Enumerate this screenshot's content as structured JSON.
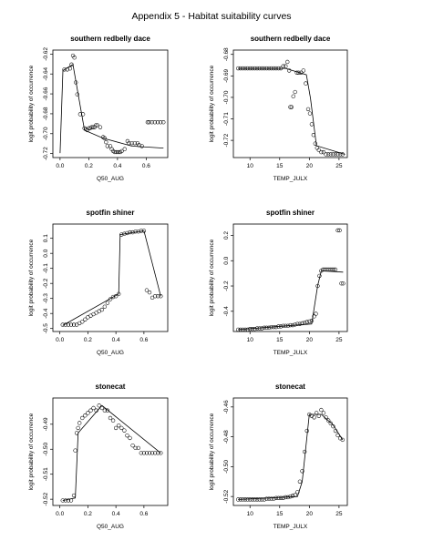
{
  "page": {
    "title": "Appendix 5 - Habitat suitability curves"
  },
  "chart_data": [
    {
      "type": "scatter",
      "title": "southern redbelly dace",
      "xlabel": "Q50_AUG",
      "ylabel": "logit probability of occurrence",
      "xlim": [
        -0.05,
        0.75
      ],
      "ylim": [
        -0.724,
        -0.616
      ],
      "xticks": [
        0.0,
        0.2,
        0.4,
        0.6
      ],
      "xtick_labels": [
        "0.0",
        "0.2",
        "0.4",
        "0.6"
      ],
      "yticks": [
        -0.72,
        -0.7,
        -0.68,
        -0.66,
        -0.64,
        -0.62
      ],
      "ytick_labels": [
        "-0.72",
        "-0.70",
        "-0.68",
        "-0.66",
        "-0.64",
        "-0.62"
      ],
      "grid": false,
      "points": {
        "x": [
          0.03,
          0.05,
          0.07,
          0.08,
          0.09,
          0.1,
          0.11,
          0.12,
          0.14,
          0.16,
          0.17,
          0.18,
          0.19,
          0.2,
          0.21,
          0.22,
          0.23,
          0.24,
          0.25,
          0.26,
          0.28,
          0.3,
          0.31,
          0.32,
          0.33,
          0.35,
          0.36,
          0.37,
          0.38,
          0.39,
          0.4,
          0.41,
          0.42,
          0.43,
          0.45,
          0.47,
          0.48,
          0.5,
          0.52,
          0.54,
          0.55,
          0.57,
          0.61,
          0.62,
          0.64,
          0.66,
          0.68,
          0.7,
          0.72
        ],
        "y": [
          -0.6355,
          -0.6355,
          -0.6345,
          -0.6305,
          -0.6215,
          -0.6235,
          -0.6485,
          -0.6605,
          -0.6805,
          -0.6805,
          -0.6945,
          -0.6955,
          -0.6965,
          -0.6945,
          -0.6945,
          -0.6935,
          -0.6935,
          -0.6935,
          -0.6915,
          -0.6915,
          -0.6935,
          -0.7035,
          -0.7045,
          -0.7085,
          -0.7125,
          -0.7125,
          -0.7155,
          -0.7175,
          -0.7185,
          -0.7185,
          -0.7185,
          -0.7185,
          -0.7185,
          -0.7175,
          -0.7155,
          -0.7075,
          -0.7095,
          -0.7095,
          -0.7095,
          -0.7095,
          -0.7115,
          -0.7125,
          -0.6885,
          -0.6885,
          -0.6885,
          -0.6885,
          -0.6885,
          -0.6885,
          -0.6885
        ]
      },
      "fitted_line": {
        "x": [
          0.0,
          0.02,
          0.09,
          0.17,
          0.3,
          0.5,
          0.72
        ],
        "y": [
          -0.7195,
          -0.6365,
          -0.6305,
          -0.6965,
          -0.7045,
          -0.7125,
          -0.7145
        ]
      }
    },
    {
      "type": "scatter",
      "title": "southern redbelly dace",
      "xlabel": "TEMP_JULX",
      "ylabel": "logit probability of occurrence",
      "xlim": [
        7.2,
        26.4
      ],
      "ylim": [
        -0.728,
        -0.678
      ],
      "xticks": [
        10,
        15,
        20,
        25
      ],
      "xtick_labels": [
        "10",
        "15",
        "20",
        "25"
      ],
      "yticks": [
        -0.72,
        -0.71,
        -0.7,
        -0.69,
        -0.68
      ],
      "ytick_labels": [
        "-0.72",
        "-0.71",
        "-0.70",
        "-0.69",
        "-0.68"
      ],
      "grid": false,
      "points": {
        "x": [
          8.0,
          8.4,
          8.8,
          9.2,
          9.6,
          10.0,
          10.4,
          10.8,
          11.2,
          11.6,
          12.0,
          12.4,
          12.8,
          13.2,
          13.6,
          14.0,
          14.4,
          14.8,
          15.2,
          15.6,
          16.0,
          16.3,
          16.6,
          16.8,
          17.0,
          17.3,
          17.6,
          17.9,
          18.2,
          18.6,
          19.0,
          19.4,
          19.8,
          20.1,
          20.4,
          20.7,
          21.0,
          21.3,
          21.6,
          22.0,
          22.4,
          22.8,
          23.2,
          23.6,
          24.0,
          24.4,
          24.8,
          25.2,
          25.6
        ],
        "y": [
          -0.6865,
          -0.6865,
          -0.6865,
          -0.6865,
          -0.6865,
          -0.6865,
          -0.6865,
          -0.6865,
          -0.6865,
          -0.6865,
          -0.6865,
          -0.6865,
          -0.6865,
          -0.6865,
          -0.6865,
          -0.6865,
          -0.6865,
          -0.6865,
          -0.6865,
          -0.6855,
          -0.6855,
          -0.6835,
          -0.6875,
          -0.7045,
          -0.7045,
          -0.6995,
          -0.6975,
          -0.6885,
          -0.6885,
          -0.6885,
          -0.6875,
          -0.6935,
          -0.7055,
          -0.7075,
          -0.7125,
          -0.7175,
          -0.7215,
          -0.7235,
          -0.7245,
          -0.7255,
          -0.7255,
          -0.7265,
          -0.7265,
          -0.7265,
          -0.7265,
          -0.7265,
          -0.7265,
          -0.7265,
          -0.7265
        ]
      },
      "fitted_line": {
        "x": [
          8.0,
          16.0,
          19.5,
          20.2,
          21.2,
          26.0
        ],
        "y": [
          -0.6865,
          -0.6865,
          -0.6895,
          -0.7005,
          -0.7225,
          -0.7265
        ]
      }
    },
    {
      "type": "scatter",
      "title": "spotfin shiner",
      "xlabel": "Q50_AUG",
      "ylabel": "logit probability of occurrence",
      "xlim": [
        -0.05,
        0.77
      ],
      "ylim": [
        -0.52,
        0.195
      ],
      "xticks": [
        0.0,
        0.2,
        0.4,
        0.6
      ],
      "xtick_labels": [
        "0.0",
        "0.2",
        "0.4",
        "0.6"
      ],
      "yticks": [
        -0.5,
        -0.4,
        -0.3,
        -0.2,
        -0.1,
        0.0,
        0.1
      ],
      "ytick_labels": [
        "-0.5",
        "-0.4",
        "-0.3",
        "-0.2",
        "-0.1",
        "0.0",
        "0.1"
      ],
      "grid": false,
      "points": {
        "x": [
          0.02,
          0.04,
          0.06,
          0.08,
          0.1,
          0.12,
          0.14,
          0.16,
          0.18,
          0.2,
          0.22,
          0.24,
          0.26,
          0.28,
          0.3,
          0.32,
          0.34,
          0.36,
          0.38,
          0.4,
          0.42,
          0.44,
          0.46,
          0.48,
          0.5,
          0.52,
          0.54,
          0.56,
          0.58,
          0.6,
          0.62,
          0.64,
          0.66,
          0.68,
          0.7,
          0.72
        ],
        "y": [
          -0.475,
          -0.475,
          -0.475,
          -0.475,
          -0.475,
          -0.475,
          -0.465,
          -0.455,
          -0.44,
          -0.425,
          -0.415,
          -0.405,
          -0.395,
          -0.385,
          -0.375,
          -0.355,
          -0.33,
          -0.305,
          -0.29,
          -0.285,
          -0.27,
          0.125,
          0.13,
          0.135,
          0.14,
          0.14,
          0.145,
          0.145,
          0.15,
          0.15,
          -0.245,
          -0.26,
          -0.295,
          -0.285,
          -0.285,
          -0.285
        ]
      },
      "fitted_line": {
        "x": [
          0.02,
          0.42,
          0.43,
          0.6,
          0.72
        ],
        "y": [
          -0.48,
          -0.27,
          0.125,
          0.15,
          -0.285
        ]
      }
    },
    {
      "type": "scatter",
      "title": "spotfin shiner",
      "xlabel": "TEMP_JULX",
      "ylabel": "logit probability of occurrence",
      "xlim": [
        7.2,
        26.4
      ],
      "ylim": [
        -0.56,
        0.29
      ],
      "xticks": [
        10,
        15,
        20,
        25
      ],
      "xtick_labels": [
        "10",
        "15",
        "20",
        "25"
      ],
      "yticks": [
        -0.4,
        -0.2,
        0.0,
        0.2
      ],
      "ytick_labels": [
        "-0.4",
        "-0.2",
        "0.0",
        "0.2"
      ],
      "grid": false,
      "points": {
        "x": [
          8.0,
          8.4,
          8.8,
          9.2,
          9.6,
          10.0,
          10.4,
          10.8,
          11.2,
          11.6,
          12.0,
          12.4,
          12.8,
          13.2,
          13.6,
          14.0,
          14.4,
          14.8,
          15.2,
          15.6,
          16.0,
          16.4,
          16.8,
          17.2,
          17.6,
          18.0,
          18.4,
          18.8,
          19.2,
          19.6,
          20.0,
          20.4,
          20.8,
          21.1,
          21.4,
          21.7,
          22.0,
          22.3,
          22.6,
          22.9,
          23.2,
          23.5,
          23.8,
          24.1,
          24.4,
          24.8,
          25.1,
          25.4,
          25.7
        ],
        "y": [
          -0.545,
          -0.545,
          -0.545,
          -0.545,
          -0.545,
          -0.54,
          -0.54,
          -0.54,
          -0.535,
          -0.535,
          -0.535,
          -0.53,
          -0.53,
          -0.53,
          -0.525,
          -0.525,
          -0.525,
          -0.52,
          -0.52,
          -0.515,
          -0.515,
          -0.515,
          -0.51,
          -0.51,
          -0.505,
          -0.5,
          -0.5,
          -0.495,
          -0.49,
          -0.485,
          -0.48,
          -0.475,
          -0.44,
          -0.42,
          -0.2,
          -0.12,
          -0.08,
          -0.07,
          -0.07,
          -0.07,
          -0.07,
          -0.07,
          -0.07,
          -0.07,
          -0.07,
          0.24,
          0.24,
          -0.18,
          -0.18
        ]
      },
      "fitted_line": {
        "x": [
          8.0,
          20.4,
          21.4,
          22.0,
          25.7
        ],
        "y": [
          -0.545,
          -0.5,
          -0.2,
          -0.08,
          -0.09
        ]
      }
    },
    {
      "type": "scatter",
      "title": "stonecat",
      "xlabel": "Q50_AUG",
      "ylabel": "logit probability of occurrence",
      "xlim": [
        -0.05,
        0.77
      ],
      "ylim": [
        -0.5225,
        -0.4795
      ],
      "xticks": [
        0.0,
        0.2,
        0.4,
        0.6
      ],
      "xtick_labels": [
        "0.0",
        "0.2",
        "0.4",
        "0.6"
      ],
      "yticks": [
        -0.52,
        -0.51,
        -0.5,
        -0.49
      ],
      "ytick_labels": [
        "-0.52",
        "-0.51",
        "-0.50",
        "-0.49"
      ],
      "grid": false,
      "points": {
        "x": [
          0.02,
          0.04,
          0.06,
          0.08,
          0.1,
          0.11,
          0.12,
          0.13,
          0.14,
          0.16,
          0.18,
          0.2,
          0.22,
          0.24,
          0.26,
          0.28,
          0.3,
          0.32,
          0.34,
          0.36,
          0.38,
          0.4,
          0.42,
          0.44,
          0.46,
          0.48,
          0.5,
          0.52,
          0.54,
          0.56,
          0.58,
          0.6,
          0.62,
          0.64,
          0.66,
          0.68,
          0.7,
          0.72
        ],
        "y": [
          -0.5205,
          -0.5205,
          -0.5205,
          -0.5205,
          -0.5185,
          -0.5005,
          -0.4935,
          -0.4915,
          -0.4895,
          -0.4875,
          -0.4865,
          -0.4855,
          -0.4845,
          -0.4835,
          -0.4845,
          -0.4825,
          -0.4835,
          -0.4845,
          -0.4845,
          -0.4875,
          -0.4885,
          -0.4915,
          -0.4905,
          -0.4915,
          -0.4925,
          -0.4945,
          -0.4955,
          -0.4985,
          -0.4995,
          -0.4995,
          -0.5015,
          -0.5015,
          -0.5015,
          -0.5015,
          -0.5015,
          -0.5015,
          -0.5015,
          -0.5015
        ]
      },
      "fitted_line": {
        "x": [
          0.02,
          0.11,
          0.13,
          0.3,
          0.72
        ],
        "y": [
          -0.5205,
          -0.5195,
          -0.4935,
          -0.4825,
          -0.5015
        ]
      }
    },
    {
      "type": "scatter",
      "title": "stonecat",
      "xlabel": "TEMP_JULX",
      "ylabel": "logit probability of occurrence",
      "xlim": [
        7.2,
        26.4
      ],
      "ylim": [
        -0.526,
        -0.454
      ],
      "xticks": [
        10,
        15,
        20,
        25
      ],
      "xtick_labels": [
        "10",
        "15",
        "20",
        "25"
      ],
      "yticks": [
        -0.52,
        -0.5,
        -0.48,
        -0.46
      ],
      "ytick_labels": [
        "-0.52",
        "-0.50",
        "-0.48",
        "-0.46"
      ],
      "grid": false,
      "points": {
        "x": [
          8.0,
          8.4,
          8.8,
          9.2,
          9.6,
          10.0,
          10.4,
          10.8,
          11.2,
          11.6,
          12.0,
          12.4,
          12.8,
          13.2,
          13.6,
          14.0,
          14.4,
          14.8,
          15.2,
          15.6,
          16.0,
          16.4,
          16.8,
          17.2,
          17.6,
          18.0,
          18.4,
          18.8,
          19.2,
          19.6,
          20.0,
          20.4,
          20.8,
          21.2,
          21.6,
          22.0,
          22.4,
          22.8,
          23.2,
          23.6,
          24.0,
          24.4,
          24.8,
          25.2,
          25.6
        ],
        "y": [
          -0.522,
          -0.522,
          -0.522,
          -0.522,
          -0.522,
          -0.522,
          -0.522,
          -0.522,
          -0.522,
          -0.522,
          -0.522,
          -0.522,
          -0.5215,
          -0.5215,
          -0.5215,
          -0.5215,
          -0.521,
          -0.521,
          -0.521,
          -0.521,
          -0.5205,
          -0.5205,
          -0.52,
          -0.5195,
          -0.519,
          -0.517,
          -0.51,
          -0.503,
          -0.49,
          -0.476,
          -0.465,
          -0.466,
          -0.467,
          -0.464,
          -0.466,
          -0.462,
          -0.464,
          -0.467,
          -0.469,
          -0.471,
          -0.473,
          -0.476,
          -0.479,
          -0.481,
          -0.482
        ]
      },
      "fitted_line": {
        "x": [
          8.0,
          18.0,
          18.8,
          20.0,
          22.0,
          24.0,
          25.6
        ],
        "y": [
          -0.522,
          -0.52,
          -0.51,
          -0.465,
          -0.465,
          -0.472,
          -0.482
        ]
      }
    }
  ]
}
